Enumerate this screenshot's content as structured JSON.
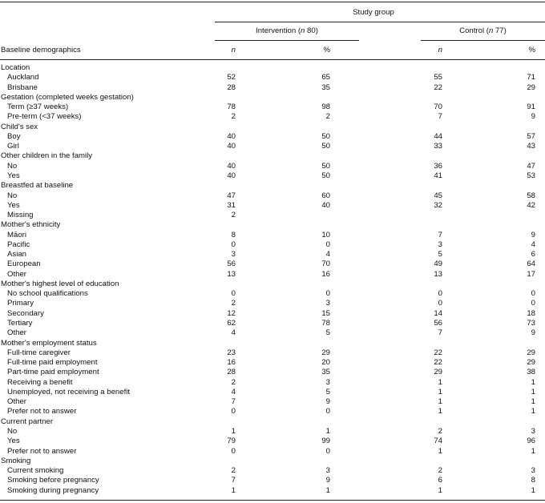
{
  "header": {
    "study_group": "Study group",
    "intervention_label": "Intervention (",
    "intervention_n": "n",
    "intervention_count": " 80)",
    "control_label": "Control (",
    "control_n": "n",
    "control_count": " 77)",
    "row_label": "Baseline demographics",
    "col_n1": "n",
    "col_pct1": "%",
    "col_n2": "n",
    "col_pct2": "%"
  },
  "rows": [
    {
      "label": "Location",
      "indent": false,
      "v": [
        "",
        "",
        "",
        ""
      ]
    },
    {
      "label": "Auckland",
      "indent": true,
      "v": [
        "52",
        "65",
        "55",
        "71"
      ]
    },
    {
      "label": "Brisbane",
      "indent": true,
      "v": [
        "28",
        "35",
        "22",
        "29"
      ]
    },
    {
      "label": "Gestation (completed weeks gestation)",
      "indent": false,
      "v": [
        "",
        "",
        "",
        ""
      ]
    },
    {
      "label": "Term (≥37 weeks)",
      "indent": true,
      "v": [
        "78",
        "98",
        "70",
        "91"
      ]
    },
    {
      "label": "Pre-term (<37 weeks)",
      "indent": true,
      "v": [
        "2",
        "2",
        "7",
        "9"
      ]
    },
    {
      "label": "Child's sex",
      "indent": false,
      "v": [
        "",
        "",
        "",
        ""
      ]
    },
    {
      "label": "Boy",
      "indent": true,
      "v": [
        "40",
        "50",
        "44",
        "57"
      ]
    },
    {
      "label": "Girl",
      "indent": true,
      "v": [
        "40",
        "50",
        "33",
        "43"
      ]
    },
    {
      "label": "Other children in the family",
      "indent": false,
      "v": [
        "",
        "",
        "",
        ""
      ]
    },
    {
      "label": "No",
      "indent": true,
      "v": [
        "40",
        "50",
        "36",
        "47"
      ]
    },
    {
      "label": "Yes",
      "indent": true,
      "v": [
        "40",
        "50",
        "41",
        "53"
      ]
    },
    {
      "label": "Breastfed at baseline",
      "indent": false,
      "v": [
        "",
        "",
        "",
        ""
      ]
    },
    {
      "label": "No",
      "indent": true,
      "v": [
        "47",
        "60",
        "45",
        "58"
      ]
    },
    {
      "label": "Yes",
      "indent": true,
      "v": [
        "31",
        "40",
        "32",
        "42"
      ]
    },
    {
      "label": "Missing",
      "indent": true,
      "v": [
        "2",
        "",
        "",
        ""
      ]
    },
    {
      "label": "Mother's ethnicity",
      "indent": false,
      "v": [
        "",
        "",
        "",
        ""
      ]
    },
    {
      "label": "Māori",
      "indent": true,
      "v": [
        "8",
        "10",
        "7",
        "9"
      ]
    },
    {
      "label": "Pacific",
      "indent": true,
      "v": [
        "0",
        "0",
        "3",
        "4"
      ]
    },
    {
      "label": "Asian",
      "indent": true,
      "v": [
        "3",
        "4",
        "5",
        "6"
      ]
    },
    {
      "label": "European",
      "indent": true,
      "v": [
        "56",
        "70",
        "49",
        "64"
      ]
    },
    {
      "label": "Other",
      "indent": true,
      "v": [
        "13",
        "16",
        "13",
        "17"
      ]
    },
    {
      "label": "Mother's highest level of education",
      "indent": false,
      "v": [
        "",
        "",
        "",
        ""
      ]
    },
    {
      "label": "No school qualifications",
      "indent": true,
      "v": [
        "0",
        "0",
        "0",
        "0"
      ]
    },
    {
      "label": "Primary",
      "indent": true,
      "v": [
        "2",
        "3",
        "0",
        "0"
      ]
    },
    {
      "label": "Secondary",
      "indent": true,
      "v": [
        "12",
        "15",
        "14",
        "18"
      ]
    },
    {
      "label": "Tertiary",
      "indent": true,
      "v": [
        "62",
        "78",
        "56",
        "73"
      ]
    },
    {
      "label": "Other",
      "indent": true,
      "v": [
        "4",
        "5",
        "7",
        "9"
      ]
    },
    {
      "label": "Mother's employment status",
      "indent": false,
      "v": [
        "",
        "",
        "",
        ""
      ]
    },
    {
      "label": "Full-time caregiver",
      "indent": true,
      "v": [
        "23",
        "29",
        "22",
        "29"
      ]
    },
    {
      "label": "Full-time paid employment",
      "indent": true,
      "v": [
        "16",
        "20",
        "22",
        "29"
      ]
    },
    {
      "label": "Part-time paid employment",
      "indent": true,
      "v": [
        "28",
        "35",
        "29",
        "38"
      ]
    },
    {
      "label": "Receiving a benefit",
      "indent": true,
      "v": [
        "2",
        "3",
        "1",
        "1"
      ]
    },
    {
      "label": "Unemployed, not receiving a benefit",
      "indent": true,
      "v": [
        "4",
        "5",
        "1",
        "1"
      ]
    },
    {
      "label": "Other",
      "indent": true,
      "v": [
        "7",
        "9",
        "1",
        "1"
      ]
    },
    {
      "label": "Prefer not to answer",
      "indent": true,
      "v": [
        "0",
        "0",
        "1",
        "1"
      ]
    },
    {
      "label": "Current partner",
      "indent": false,
      "v": [
        "",
        "",
        "",
        ""
      ]
    },
    {
      "label": "No",
      "indent": true,
      "v": [
        "1",
        "1",
        "2",
        "3"
      ]
    },
    {
      "label": "Yes",
      "indent": true,
      "v": [
        "79",
        "99",
        "74",
        "96"
      ]
    },
    {
      "label": "Prefer not to answer",
      "indent": true,
      "v": [
        "0",
        "0",
        "1",
        "1"
      ]
    },
    {
      "label": "Smoking",
      "indent": false,
      "v": [
        "",
        "",
        "",
        ""
      ]
    },
    {
      "label": "Current smoking",
      "indent": true,
      "v": [
        "2",
        "3",
        "2",
        "3"
      ]
    },
    {
      "label": "Smoking before pregnancy",
      "indent": true,
      "v": [
        "7",
        "9",
        "6",
        "8"
      ]
    },
    {
      "label": "Smoking during pregnancy",
      "indent": true,
      "v": [
        "1",
        "1",
        "1",
        "1"
      ]
    }
  ]
}
